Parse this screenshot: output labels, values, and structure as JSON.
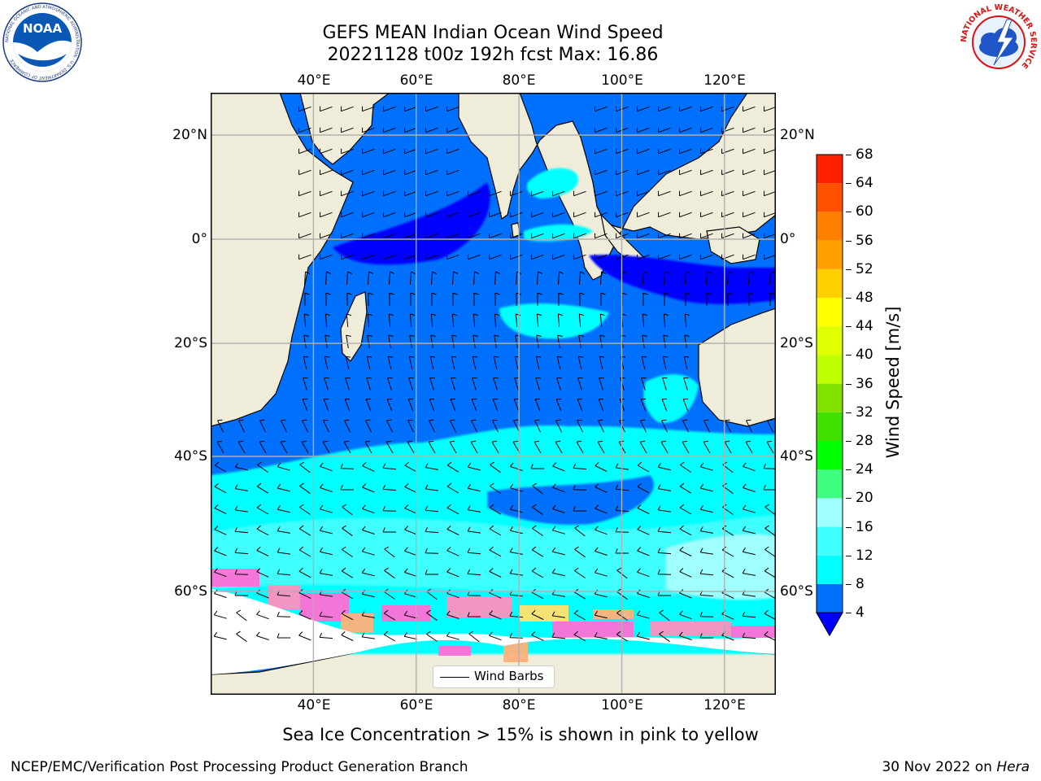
{
  "title": {
    "line1": "GEFS MEAN Indian Ocean Wind Speed",
    "line2": "20221128 t00z 192h fcst   Max: 16.86"
  },
  "map": {
    "lon_range": [
      20,
      130
    ],
    "lat_range": [
      -70,
      28
    ],
    "lon_ticks": [
      "40°E",
      "60°E",
      "80°E",
      "100°E",
      "120°E"
    ],
    "lat_ticks": [
      "20°N",
      "0°",
      "20°S",
      "40°S",
      "60°S"
    ],
    "gridlines": true,
    "land_color": "#efedd9",
    "ice_colors": [
      "#ff6fd6",
      "#ff8fc0",
      "#ffb07a",
      "#ffe26a"
    ],
    "legend": {
      "label": "Wind Barbs",
      "position": "bottom-center"
    }
  },
  "colorbar": {
    "label": "Wind Speed [m/s]",
    "ticks": [
      "4",
      "8",
      "12",
      "16",
      "20",
      "24",
      "28",
      "32",
      "36",
      "40",
      "44",
      "48",
      "52",
      "56",
      "60",
      "64",
      "68"
    ],
    "colors": [
      "#0070ff",
      "#00ffff",
      "#40ffff",
      "#a0ffff",
      "#40ff80",
      "#00ff00",
      "#40e000",
      "#80e000",
      "#c0ff00",
      "#e0ff00",
      "#ffff00",
      "#ffd000",
      "#ffa000",
      "#ff8000",
      "#ff5000",
      "#ff2000"
    ],
    "under_color": "#0000ff"
  },
  "caption": "Sea Ice Concentration > 15% is shown in pink to yellow",
  "footer": {
    "left": "NCEP/EMC/Verification Post Processing Product Generation Branch",
    "right_date": "30 Nov 2022 on ",
    "right_host": "Hera"
  },
  "logos": {
    "noaa": {
      "text": "NOAA",
      "ring_text": "NATIONAL OCEANIC AND ATMOSPHERIC ADMINISTRATION · U.S. DEPARTMENT OF COMMERCE"
    },
    "nws": {
      "ring_text": "NATIONAL WEATHER SERVICE"
    }
  }
}
